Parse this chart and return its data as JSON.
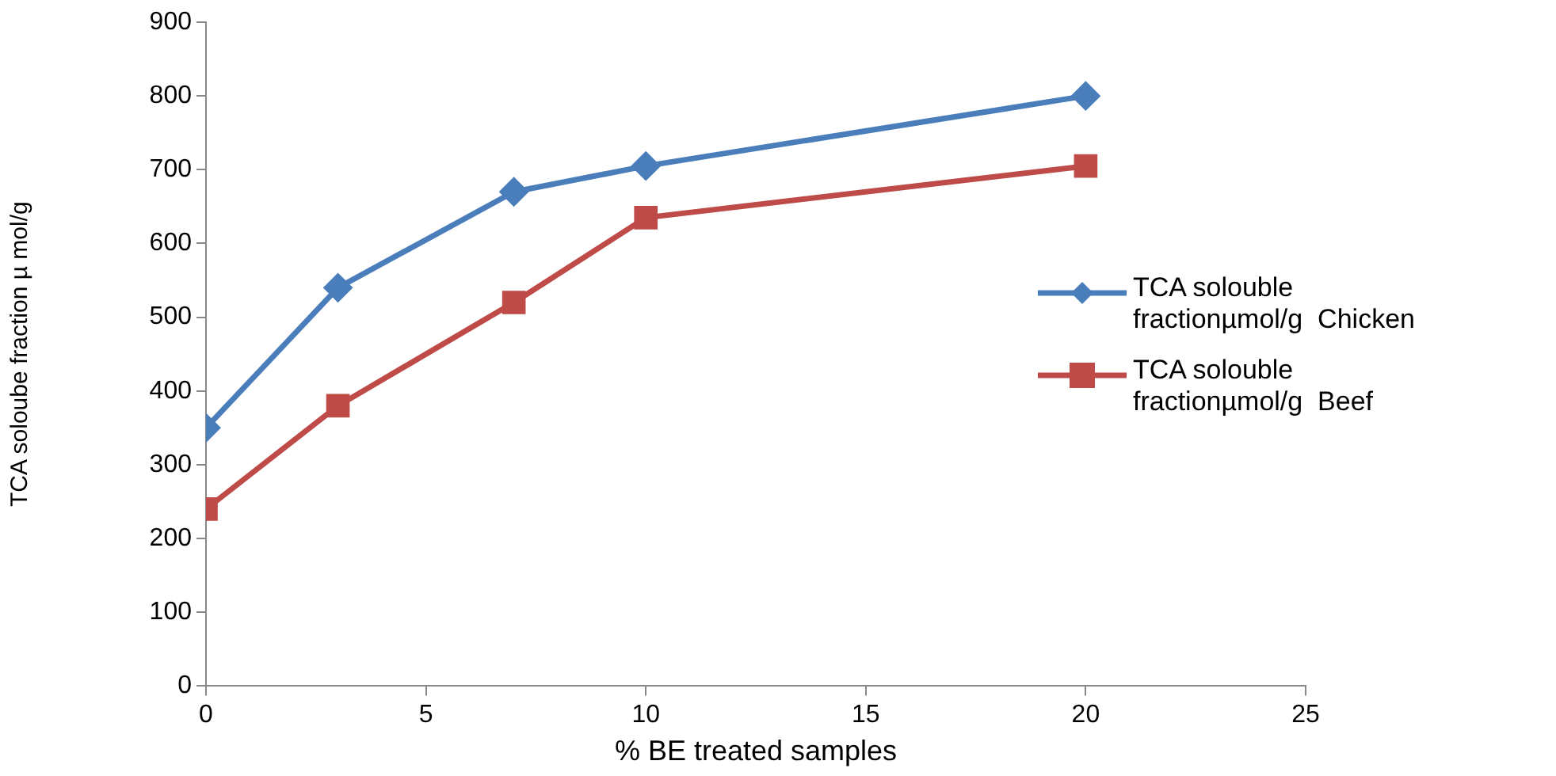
{
  "chart_data": {
    "type": "line",
    "xlabel": "% BE treated samples",
    "ylabel": "TCA soloube fraction µ mol/g",
    "x": [
      0,
      3,
      7,
      10,
      20
    ],
    "series": [
      {
        "name": "TCA solouble fractionµmol/g  Chicken",
        "color": "#4a7ebb",
        "values": [
          350,
          540,
          670,
          705,
          800
        ],
        "marker": "diamond"
      },
      {
        "name": "TCA solouble fractionµmol/g  Beef",
        "color": "#be4b48",
        "values": [
          240,
          380,
          520,
          635,
          705
        ],
        "marker": "square"
      }
    ],
    "xlim": [
      0,
      25
    ],
    "xticks": [
      0,
      5,
      10,
      15,
      20,
      25
    ],
    "ylim": [
      0,
      900
    ],
    "yticks": [
      0,
      100,
      200,
      300,
      400,
      500,
      600,
      700,
      800,
      900
    ],
    "grid": false,
    "legend": "right",
    "line_style": "solid"
  }
}
